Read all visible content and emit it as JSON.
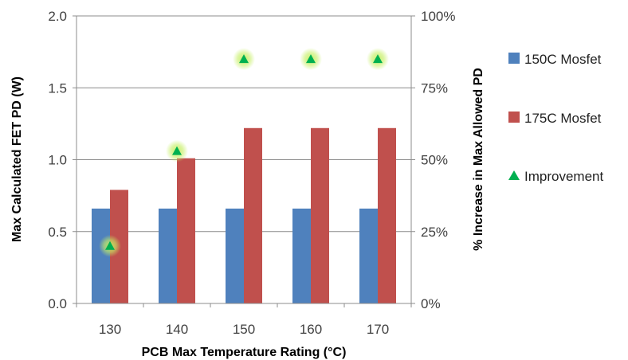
{
  "chart_data": {
    "type": "bar",
    "categories": [
      "130",
      "140",
      "150",
      "160",
      "170"
    ],
    "series": [
      {
        "name": "150C Mosfet",
        "values": [
          0.66,
          0.66,
          0.66,
          0.66,
          0.66
        ],
        "color": "#4F81BD",
        "axis": "left"
      },
      {
        "name": "175C Mosfet",
        "values": [
          0.79,
          1.01,
          1.22,
          1.22,
          1.22
        ],
        "color": "#C0504D",
        "axis": "left"
      }
    ],
    "overlay": {
      "name": "Improvement",
      "type": "scatter",
      "marker": "triangle",
      "values": [
        20,
        53,
        85,
        85,
        85
      ],
      "color": "#00B050",
      "axis": "right"
    },
    "xlabel": "PCB Max Temperature Rating (°C)",
    "ylabel": "Max Calculated FET PD (W)",
    "y2label": "% Increase in Max Allowed PD",
    "ylim": [
      0,
      2
    ],
    "y2lim": [
      0,
      100
    ],
    "yticks": [
      "0.0",
      "0.5",
      "1.0",
      "1.5",
      "2.0"
    ],
    "y2ticks": [
      "0%",
      "25%",
      "50%",
      "75%",
      "100%"
    ],
    "legend_position": "right",
    "grid": true
  }
}
